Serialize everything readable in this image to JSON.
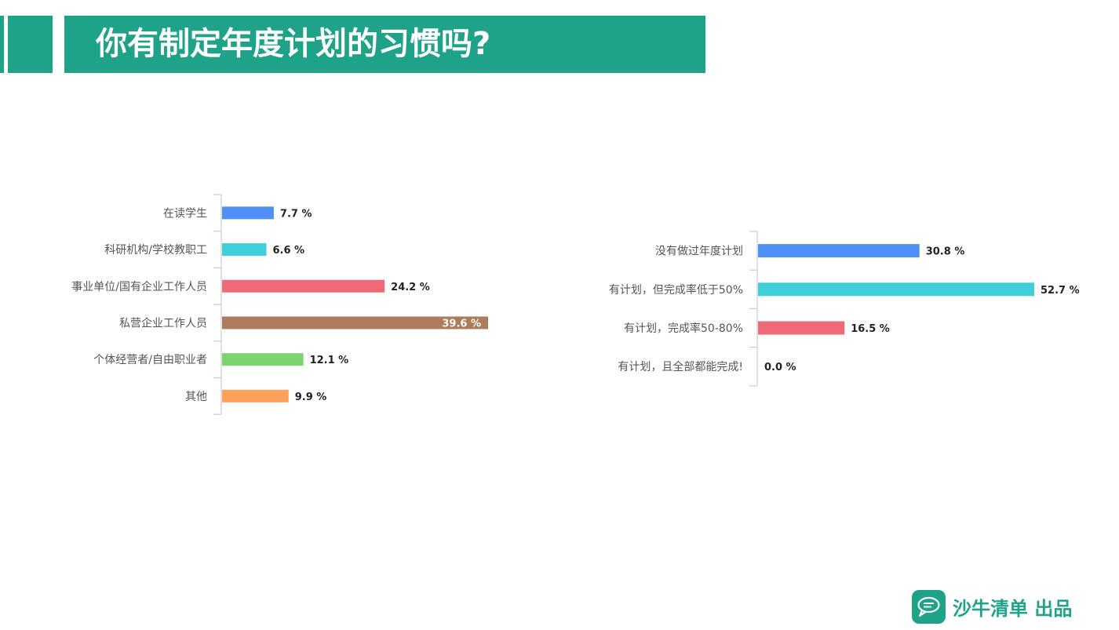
{
  "header": {
    "title": "你有制定年度计划的习惯吗?",
    "band_color": "#1fa388"
  },
  "chart_data": [
    {
      "type": "bar",
      "orientation": "horizontal",
      "categories": [
        "在读学生",
        "科研机构/学校教职工",
        "事业单位/国有企业工作人员",
        "私营企业工作人员",
        "个体经营者/自由职业者",
        "其他"
      ],
      "values": [
        7.7,
        6.6,
        24.2,
        39.6,
        12.1,
        9.9
      ],
      "value_labels": [
        "7.7 %",
        "6.6 %",
        "24.2 %",
        "39.6 %",
        "12.1 %",
        "9.9 %"
      ],
      "colors": [
        "#4f8ff7",
        "#3ecfd8",
        "#ef6a78",
        "#ad7c5a",
        "#7cd36f",
        "#ffa15a"
      ],
      "unit": "%",
      "xlim": [
        0,
        39.6
      ],
      "grid": false
    },
    {
      "type": "bar",
      "orientation": "horizontal",
      "categories": [
        "没有做过年度计划",
        "有计划，但完成率低于50%",
        "有计划，完成率50-80%",
        "有计划，且全部都能完成!"
      ],
      "values": [
        30.8,
        52.7,
        16.5,
        0.0
      ],
      "value_labels": [
        "30.8 %",
        "52.7 %",
        "16.5 %",
        "0.0 %"
      ],
      "colors": [
        "#4f8ff7",
        "#3ecfd8",
        "#ef6a78",
        "#7cd36f"
      ],
      "unit": "%",
      "xlim": [
        0,
        52.7
      ],
      "grid": false
    }
  ],
  "footer": {
    "brand": "沙牛清单 出品",
    "logo_icon": "chat-bubble-icon",
    "brand_color": "#1fa388"
  }
}
